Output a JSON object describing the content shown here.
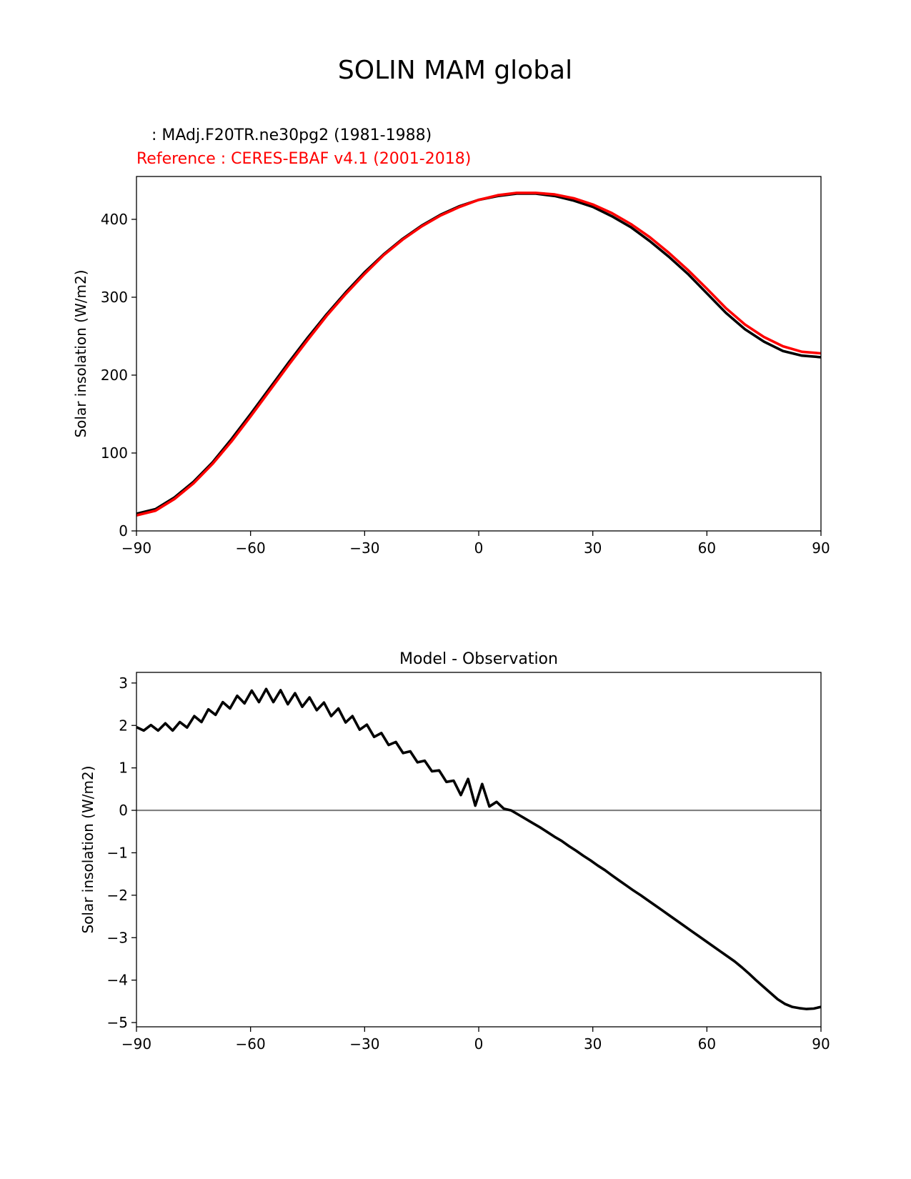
{
  "figure": {
    "title": "SOLIN MAM global",
    "test_label": "   : MAdj.F20TR.ne30pg2 (1981-1988)",
    "ref_label": "Reference : CERES-EBAF v4.1 (2001-2018)"
  },
  "colors": {
    "test": "#000000",
    "reference": "#ff0000",
    "zero_line": "#808080"
  },
  "chart_data": [
    {
      "type": "line",
      "title": "",
      "xlabel": "",
      "ylabel": "Solar insolation (W/m2)",
      "xlim": [
        -90,
        90
      ],
      "ylim": [
        0,
        455
      ],
      "xticks": [
        -90,
        -60,
        -30,
        0,
        30,
        60,
        90
      ],
      "xtick_labels": [
        "−90",
        "−60",
        "−30",
        "0",
        "30",
        "60",
        "90"
      ],
      "yticks": [
        0,
        100,
        200,
        300,
        400
      ],
      "ytick_labels": [
        "0",
        "100",
        "200",
        "300",
        "400"
      ],
      "grid": false,
      "series": [
        {
          "color": "#000000",
          "x": [
            -90,
            -85,
            -80,
            -75,
            -70,
            -65,
            -60,
            -55,
            -50,
            -45,
            -40,
            -35,
            -30,
            -25,
            -20,
            -15,
            -10,
            -5,
            0,
            5,
            10,
            15,
            20,
            25,
            30,
            35,
            40,
            45,
            50,
            55,
            60,
            65,
            70,
            75,
            80,
            85,
            90
          ],
          "y": [
            22,
            28,
            43,
            63,
            88,
            118,
            150,
            183,
            216,
            248,
            278,
            306,
            332,
            355,
            375,
            392,
            406,
            417,
            425,
            430,
            433,
            433,
            430,
            424,
            416,
            404,
            390,
            372,
            352,
            330,
            305,
            280,
            259,
            243,
            231,
            225,
            223
          ]
        },
        {
          "color": "#ff0000",
          "x": [
            -90,
            -85,
            -80,
            -75,
            -70,
            -65,
            -60,
            -55,
            -50,
            -45,
            -40,
            -35,
            -30,
            -25,
            -20,
            -15,
            -10,
            -5,
            0,
            5,
            10,
            15,
            20,
            25,
            30,
            35,
            40,
            45,
            50,
            55,
            60,
            65,
            70,
            75,
            80,
            85,
            90
          ],
          "y": [
            20,
            26,
            41,
            61,
            86,
            115,
            147,
            180,
            213,
            245,
            276,
            304,
            330,
            354,
            374,
            391,
            405,
            416,
            425,
            431,
            434,
            434,
            432,
            427,
            419,
            408,
            394,
            377,
            357,
            335,
            311,
            286,
            265,
            249,
            237,
            230,
            228
          ]
        }
      ]
    },
    {
      "type": "line",
      "title": "Model - Observation",
      "xlabel": "",
      "ylabel": "Solar insolation (W/m2)",
      "xlim": [
        -90,
        90
      ],
      "ylim": [
        -5.1,
        3.25
      ],
      "xticks": [
        -90,
        -60,
        -30,
        0,
        30,
        60,
        90
      ],
      "xtick_labels": [
        "−90",
        "−60",
        "−30",
        "0",
        "30",
        "60",
        "90"
      ],
      "yticks": [
        -5,
        -4,
        -3,
        -2,
        -1,
        0,
        1,
        2,
        3
      ],
      "ytick_labels": [
        "−5",
        "−4",
        "−3",
        "−2",
        "−1",
        "0",
        "1",
        "2",
        "3"
      ],
      "grid": false,
      "reference_line": {
        "y": 0,
        "color": "#808080"
      },
      "series": [
        {
          "color": "#000000",
          "x": [
            -90,
            -88.1,
            -86.2,
            -84.3,
            -82.4,
            -80.5,
            -78.6,
            -76.7,
            -74.8,
            -72.9,
            -71.1,
            -69.2,
            -67.3,
            -65.4,
            -63.5,
            -61.6,
            -59.7,
            -57.8,
            -55.9,
            -54,
            -52.1,
            -50.2,
            -48.3,
            -46.4,
            -44.5,
            -42.6,
            -40.7,
            -38.8,
            -36.9,
            -35,
            -33.2,
            -31.3,
            -29.4,
            -27.5,
            -25.6,
            -23.7,
            -21.8,
            -19.9,
            -18,
            -16.1,
            -14.2,
            -12.3,
            -10.4,
            -8.5,
            -6.6,
            -4.7,
            -2.8,
            -0.9,
            0.9,
            2.8,
            4.7,
            6.6,
            8.5,
            10.4,
            12.3,
            14.2,
            16.1,
            18,
            19.9,
            21.8,
            23.7,
            25.6,
            27.5,
            29.4,
            31.3,
            33.2,
            35,
            36.9,
            38.8,
            40.7,
            42.6,
            44.5,
            46.4,
            48.3,
            50.2,
            52.1,
            54,
            55.9,
            57.8,
            59.7,
            61.6,
            63.5,
            65.4,
            67.3,
            69.2,
            71.1,
            72.9,
            74.8,
            76.7,
            78.6,
            80.5,
            82.4,
            84.3,
            86.2,
            88.1,
            90
          ],
          "y": [
            1.96,
            1.88,
            2.01,
            1.88,
            2.05,
            1.88,
            2.08,
            1.95,
            2.22,
            2.08,
            2.38,
            2.25,
            2.55,
            2.4,
            2.7,
            2.52,
            2.82,
            2.55,
            2.86,
            2.55,
            2.83,
            2.5,
            2.76,
            2.44,
            2.66,
            2.36,
            2.54,
            2.22,
            2.4,
            2.07,
            2.22,
            1.9,
            2.02,
            1.73,
            1.82,
            1.54,
            1.61,
            1.35,
            1.39,
            1.13,
            1.17,
            0.92,
            0.94,
            0.67,
            0.7,
            0.36,
            0.74,
            0.11,
            0.62,
            0.09,
            0.2,
            0.04,
            0.0,
            -0.1,
            -0.2,
            -0.3,
            -0.4,
            -0.51,
            -0.62,
            -0.72,
            -0.84,
            -0.95,
            -1.07,
            -1.18,
            -1.3,
            -1.41,
            -1.53,
            -1.65,
            -1.77,
            -1.89,
            -2.0,
            -2.12,
            -2.24,
            -2.36,
            -2.48,
            -2.6,
            -2.72,
            -2.84,
            -2.96,
            -3.08,
            -3.2,
            -3.32,
            -3.44,
            -3.56,
            -3.7,
            -3.85,
            -4.0,
            -4.15,
            -4.3,
            -4.45,
            -4.56,
            -4.63,
            -4.66,
            -4.68,
            -4.67,
            -4.63
          ]
        }
      ]
    }
  ]
}
